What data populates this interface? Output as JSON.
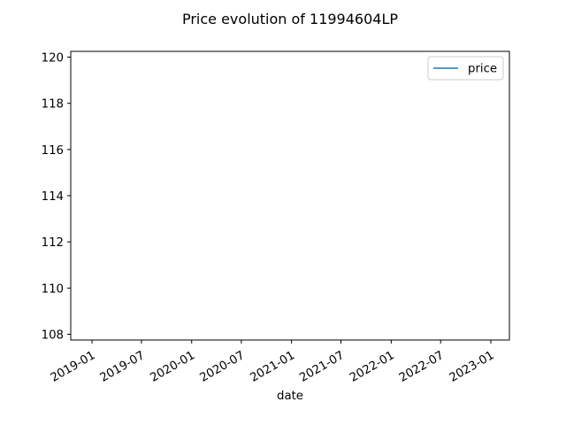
{
  "chart_data": {
    "type": "line",
    "title": "Price evolution of 11994604LP",
    "xlabel": "date",
    "ylabel": "",
    "x_tick_labels": [
      "2019-01",
      "2019-07",
      "2020-01",
      "2020-07",
      "2021-01",
      "2021-07",
      "2022-01",
      "2022-07",
      "2023-01"
    ],
    "y_tick_labels": [
      "108",
      "110",
      "112",
      "114",
      "116",
      "118",
      "120"
    ],
    "y_ticks": [
      108,
      110,
      112,
      114,
      116,
      118,
      120
    ],
    "ylim": [
      107.75,
      120.25
    ],
    "xlim": [
      "2018-10-15",
      "2023-03-10"
    ],
    "legend_position": "upper right",
    "grid": false,
    "series": [
      {
        "name": "price",
        "color": "#1f77b4",
        "x": [],
        "y": []
      }
    ]
  }
}
